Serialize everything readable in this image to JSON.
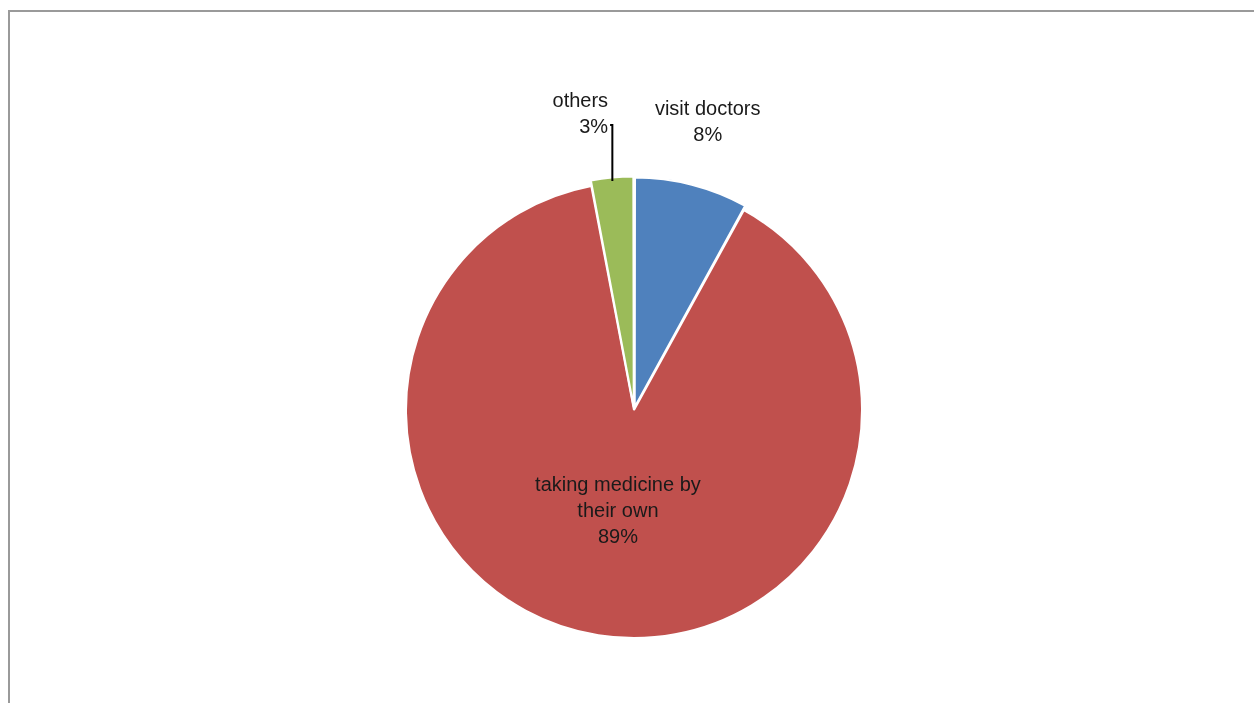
{
  "chart_data": {
    "type": "pie",
    "categories": [
      "visit doctors",
      "taking medicine by their own",
      "others"
    ],
    "values": [
      8,
      89,
      3
    ],
    "colors": [
      "#4f81bd",
      "#c0504d",
      "#9bbb59"
    ],
    "value_labels": [
      "8%",
      "89%",
      "3%"
    ],
    "legend": false
  }
}
